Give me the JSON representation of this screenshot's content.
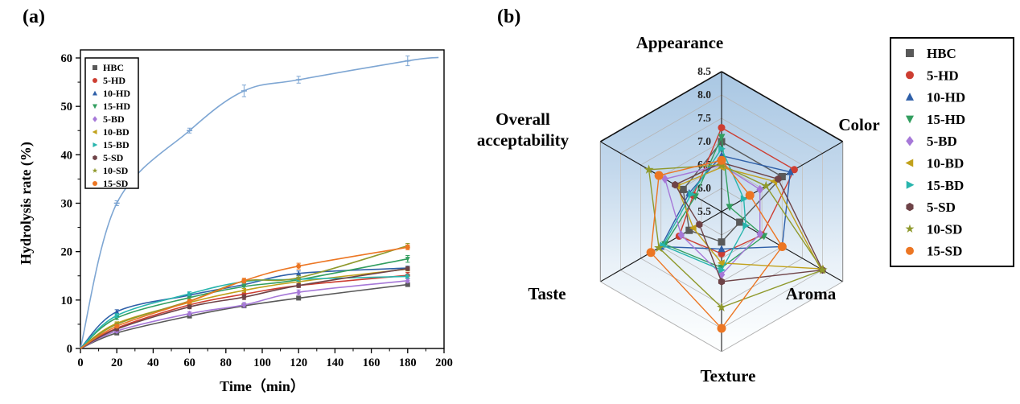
{
  "figure": {
    "panel_a_label": "(a)",
    "panel_b_label": "(b)"
  },
  "chart_data": [
    {
      "type": "line",
      "panel": "a",
      "xlabel": "Time（min）",
      "ylabel": "Hydrolysis rate (%)",
      "xlim": [
        0,
        200
      ],
      "ylim": [
        0,
        60
      ],
      "xticks": [
        0,
        20,
        40,
        60,
        80,
        100,
        120,
        140,
        160,
        180,
        200
      ],
      "x_minor_step": 10,
      "yticks": [
        0,
        10,
        20,
        30,
        40,
        50,
        60
      ],
      "y_minor_step": 5,
      "grid": false,
      "legend_position": "top-left-inside",
      "x": [
        0,
        20,
        60,
        90,
        120,
        180
      ],
      "series": [
        {
          "name": "",
          "id": "unlabeled",
          "color": "#7ea6d3",
          "marker": "dash",
          "in_legend": false,
          "values": [
            0,
            30.0,
            45.0,
            53.2,
            55.5,
            59.4
          ],
          "errors": [
            0,
            0.5,
            0.5,
            1.2,
            0.7,
            1.0
          ],
          "extend_to": [
            197,
            60.1
          ]
        },
        {
          "name": "HBC",
          "id": "HBC",
          "color": "#595959",
          "marker": "square",
          "in_legend": true,
          "values": [
            0,
            3.2,
            6.7,
            8.8,
            10.4,
            13.2
          ],
          "errors": [
            0,
            0.3,
            0.3,
            0.3,
            0.3,
            0.4
          ]
        },
        {
          "name": "5-HD",
          "id": "5-HD",
          "color": "#cd3e32",
          "marker": "circle",
          "in_legend": true,
          "values": [
            0,
            4.2,
            9.0,
            11.2,
            13.0,
            15.1
          ],
          "errors": [
            0,
            0.3,
            0.4,
            0.4,
            0.4,
            0.6
          ]
        },
        {
          "name": "10-HD",
          "id": "10-HD",
          "color": "#2e5fa8",
          "marker": "triangle-up",
          "in_legend": true,
          "values": [
            0,
            7.6,
            11.0,
            13.2,
            15.5,
            16.6
          ],
          "errors": [
            0,
            0.4,
            0.4,
            0.4,
            0.5,
            0.4
          ]
        },
        {
          "name": "15-HD",
          "id": "15-HD",
          "color": "#329e5f",
          "marker": "triangle-down",
          "in_legend": true,
          "values": [
            0,
            6.3,
            10.5,
            12.8,
            14.2,
            18.5
          ],
          "errors": [
            0,
            0.3,
            0.4,
            0.4,
            0.4,
            0.7
          ]
        },
        {
          "name": "5-BD",
          "id": "5-BD",
          "color": "#a678d8",
          "marker": "diamond",
          "in_legend": true,
          "values": [
            0,
            3.6,
            7.2,
            9.0,
            11.6,
            14.0
          ],
          "errors": [
            0,
            0.3,
            0.4,
            0.5,
            0.5,
            0.4
          ]
        },
        {
          "name": "10-BD",
          "id": "10-BD",
          "color": "#c1a11b",
          "marker": "triangle-left",
          "in_legend": true,
          "values": [
            0,
            5.2,
            9.5,
            12.0,
            13.8,
            16.4
          ],
          "errors": [
            0,
            0.3,
            0.4,
            0.4,
            0.4,
            0.4
          ]
        },
        {
          "name": "15-BD",
          "id": "15-BD",
          "color": "#28b5ad",
          "marker": "triangle-right",
          "in_legend": true,
          "values": [
            0,
            6.8,
            11.3,
            13.8,
            14.3,
            14.9
          ],
          "errors": [
            0,
            0.4,
            0.4,
            0.4,
            0.4,
            0.4
          ]
        },
        {
          "name": "5-SD",
          "id": "5-SD",
          "color": "#6e4347",
          "marker": "hexagon",
          "in_legend": true,
          "values": [
            0,
            4.0,
            8.6,
            10.6,
            13.0,
            16.5
          ],
          "errors": [
            0,
            0.3,
            0.4,
            0.5,
            0.4,
            0.4
          ]
        },
        {
          "name": "10-SD",
          "id": "10-SD",
          "color": "#8f992c",
          "marker": "star",
          "in_legend": true,
          "values": [
            0,
            5.0,
            9.8,
            13.9,
            14.6,
            21.2
          ],
          "errors": [
            0,
            0.3,
            0.4,
            0.4,
            0.4,
            0.5
          ]
        },
        {
          "name": "15-SD",
          "id": "15-SD",
          "color": "#ec7623",
          "marker": "circle",
          "in_legend": true,
          "values": [
            0,
            4.6,
            9.7,
            14.0,
            17.0,
            20.9
          ],
          "errors": [
            0,
            0.3,
            0.4,
            0.5,
            0.6,
            0.5
          ]
        }
      ]
    },
    {
      "type": "radar",
      "panel": "b",
      "axes": [
        "Appearance",
        "Color",
        "Aroma",
        "Texture",
        "Taste",
        "Overall acceptability"
      ],
      "rmin": 5.5,
      "rmax": 8.5,
      "rticks": [
        5.5,
        6.0,
        6.5,
        7.0,
        7.5,
        8.0,
        8.5
      ],
      "grid": true,
      "legend_position": "right",
      "series": [
        {
          "name": "HBC",
          "color": "#595959",
          "marker": "square",
          "values": [
            7.0,
            7.0,
            5.95,
            6.15,
            6.3,
            6.45
          ]
        },
        {
          "name": "5-HD",
          "color": "#cd3e32",
          "marker": "circle",
          "values": [
            7.3,
            7.3,
            6.5,
            6.4,
            6.55,
            6.2
          ]
        },
        {
          "name": "10-HD",
          "color": "#2e5fa8",
          "marker": "triangle-up",
          "values": [
            6.7,
            7.2,
            7.0,
            6.3,
            7.0,
            6.3
          ]
        },
        {
          "name": "15-HD",
          "color": "#329e5f",
          "marker": "triangle-down",
          "values": [
            7.1,
            5.7,
            6.55,
            6.7,
            6.9,
            6.15
          ]
        },
        {
          "name": "5-BD",
          "color": "#a678d8",
          "marker": "diamond",
          "values": [
            6.5,
            6.45,
            6.45,
            6.85,
            6.5,
            6.9
          ]
        },
        {
          "name": "10-BD",
          "color": "#c1a11b",
          "marker": "triangle-left",
          "values": [
            6.45,
            6.8,
            7.95,
            6.6,
            6.2,
            6.6
          ]
        },
        {
          "name": "15-BD",
          "color": "#28b5ad",
          "marker": "triangle-right",
          "values": [
            6.85,
            6.05,
            6.1,
            6.75,
            6.95,
            6.25
          ]
        },
        {
          "name": "5-SD",
          "color": "#6e4347",
          "marker": "hexagon",
          "values": [
            6.55,
            6.9,
            8.0,
            7.0,
            6.05,
            6.65
          ]
        },
        {
          "name": "10-SD",
          "color": "#8f992c",
          "marker": "star",
          "values": [
            6.5,
            6.6,
            8.0,
            7.55,
            7.05,
            7.3
          ]
        },
        {
          "name": "15-SD",
          "color": "#ec7623",
          "marker": "circle",
          "values": [
            6.6,
            6.2,
            7.0,
            8.0,
            7.25,
            7.05
          ]
        }
      ]
    }
  ]
}
